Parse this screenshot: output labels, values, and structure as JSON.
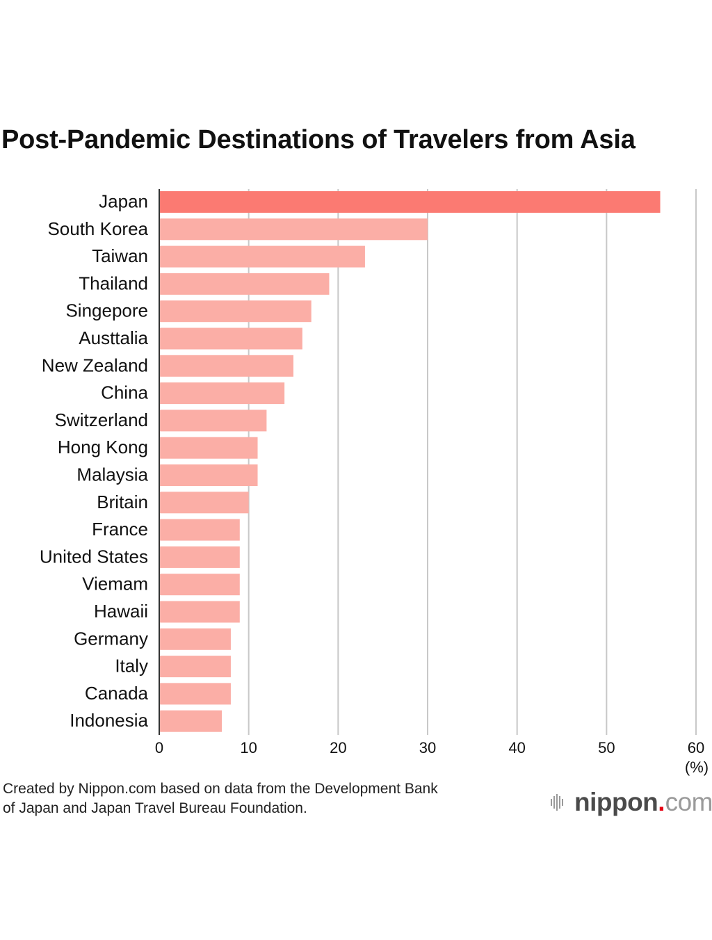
{
  "chart_data": {
    "type": "bar",
    "orientation": "horizontal",
    "title": "Post-Pandemic Destinations of Travelers from Asia",
    "categories": [
      "Japan",
      "South Korea",
      "Taiwan",
      "Thailand",
      "Singepore",
      "Austtalia",
      "New Zealand",
      "China",
      "Switzerland",
      "Hong Kong",
      "Malaysia",
      "Britain",
      "France",
      "United States",
      "Viemam",
      "Hawaii",
      "Germany",
      "Italy",
      "Canada",
      "Indonesia"
    ],
    "values": [
      56,
      30,
      23,
      19,
      17,
      16,
      15,
      14,
      12,
      11,
      11,
      10,
      9,
      9,
      9,
      9,
      8,
      8,
      8,
      7
    ],
    "xlim": [
      0,
      60
    ],
    "xticks": [
      "0",
      "10",
      "20",
      "30",
      "40",
      "50",
      "60"
    ],
    "unit_label": "(%)",
    "grid": true,
    "highlight_color": "#fb7a72",
    "bar_color": "#fbaea6"
  },
  "footer": {
    "source_line1": "Created by Nippon.com based on data from the Development Bank",
    "source_line2": "of Japan and Japan Travel Bureau Foundation."
  },
  "brand": {
    "name": "nippon",
    "dot": ".",
    "tld": "com",
    "dot_color": "#e60012",
    "icon": "nippon-logo-icon"
  }
}
